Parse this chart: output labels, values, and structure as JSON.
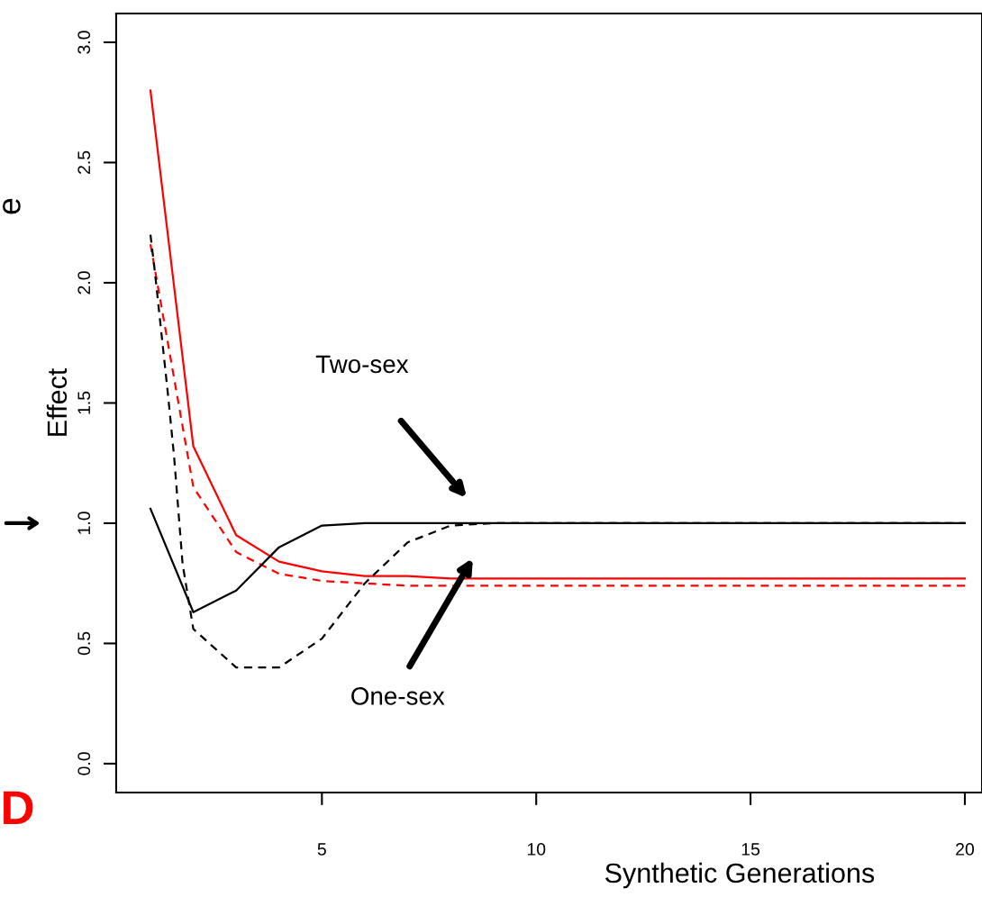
{
  "chart_data": {
    "type": "line",
    "xlabel": "Synthetic Generations",
    "ylabel": "Effect",
    "xlim": [
      0.2,
      20.4
    ],
    "xticks": [
      5,
      10,
      15,
      20
    ],
    "ylim": [
      -0.12,
      3.12
    ],
    "yticks": [
      {
        "value": 0,
        "label": "0.0"
      },
      0.5,
      {
        "value": 1,
        "label": "1.0"
      },
      1.5,
      {
        "value": 2,
        "label": "2.0"
      },
      2.5,
      {
        "value": 3,
        "label": "3.0"
      }
    ],
    "grid": false,
    "legend": false,
    "marker": "none",
    "series": [
      {
        "color": "#ff0000",
        "line_style": "solid",
        "x": [
          1,
          2,
          3,
          4,
          5,
          6,
          7,
          8,
          9,
          10,
          11,
          12,
          13,
          14,
          15,
          16,
          17,
          18,
          19,
          20
        ],
        "values": [
          2.8,
          1.32,
          0.95,
          0.84,
          0.8,
          0.78,
          0.78,
          0.77,
          0.77,
          0.77,
          0.77,
          0.77,
          0.77,
          0.77,
          0.77,
          0.77,
          0.77,
          0.77,
          0.77,
          0.77
        ]
      },
      {
        "color": "#ff0000",
        "line_style": "dashed",
        "x": [
          1,
          2,
          3,
          4,
          5,
          6,
          7,
          8,
          9,
          10,
          11,
          12,
          13,
          14,
          15,
          16,
          17,
          18,
          19,
          20
        ],
        "values": [
          2.16,
          1.15,
          0.88,
          0.79,
          0.76,
          0.75,
          0.74,
          0.74,
          0.74,
          0.74,
          0.74,
          0.74,
          0.74,
          0.74,
          0.74,
          0.74,
          0.74,
          0.74,
          0.74,
          0.74
        ]
      },
      {
        "color": "#000000",
        "line_style": "solid",
        "x": [
          1,
          2,
          3,
          4,
          5,
          6,
          7,
          8,
          9,
          10,
          11,
          12,
          13,
          14,
          15,
          16,
          17,
          18,
          19,
          20
        ],
        "values": [
          1.06,
          0.63,
          0.72,
          0.9,
          0.99,
          1.0,
          1.0,
          1.0,
          1.0,
          1.0,
          1.0,
          1.0,
          1.0,
          1.0,
          1.0,
          1.0,
          1.0,
          1.0,
          1.0,
          1.0
        ]
      },
      {
        "color": "#000000",
        "line_style": "dashed",
        "x": [
          1,
          1.1,
          1.25,
          1.4,
          1.55,
          1.75,
          2,
          3,
          4,
          5,
          6,
          7,
          8,
          9,
          10,
          11,
          12,
          13,
          14,
          15,
          16,
          17,
          18,
          19,
          20
        ],
        "values": [
          2.2,
          2.05,
          1.8,
          1.55,
          1.28,
          0.83,
          0.56,
          0.4,
          0.4,
          0.52,
          0.75,
          0.92,
          0.99,
          1.0,
          1.0,
          1.0,
          1.0,
          1.0,
          1.0,
          1.0,
          1.0,
          1.0,
          1.0,
          1.0,
          1.0
        ]
      }
    ],
    "annotations": [
      "Two-sex",
      "One-sex",
      "e",
      "D"
    ]
  }
}
